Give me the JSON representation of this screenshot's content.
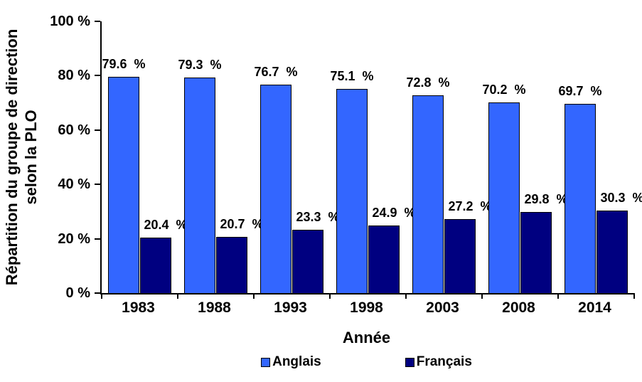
{
  "chart_data": {
    "type": "bar",
    "title": "",
    "xlabel": "Année",
    "ylabel_line1": "Répartition du groupe de direction",
    "ylabel_line2": "selon la PLO",
    "categories": [
      "1983",
      "1988",
      "1993",
      "1998",
      "2003",
      "2008",
      "2014"
    ],
    "series": [
      {
        "name": "Anglais",
        "color": "#3366FF",
        "values": [
          79.6,
          79.3,
          76.7,
          75.1,
          72.8,
          70.2,
          69.7
        ],
        "labels": [
          "79.6 %",
          "79.3 %",
          "76.7 %",
          "75.1 %",
          "72.8 %",
          "70.2 %",
          "69.7 %"
        ]
      },
      {
        "name": "Français",
        "color": "#000080",
        "values": [
          20.4,
          20.7,
          23.3,
          24.9,
          27.2,
          29.8,
          30.3
        ],
        "labels": [
          "20.4 %",
          "20.7 %",
          "23.3 %",
          "24.9 %",
          "27.2 %",
          "29.8 %",
          "30.3 %"
        ]
      }
    ],
    "ylim": [
      0,
      100
    ],
    "yticks": [
      0,
      20,
      40,
      60,
      80,
      100
    ],
    "ytick_labels": [
      "0 %",
      "20 %",
      "40 %",
      "60 %",
      "80 %",
      "100 %"
    ],
    "grid": false,
    "legend_position": "bottom",
    "axis_color": "#000000",
    "background_color": "#FFFFFF"
  }
}
